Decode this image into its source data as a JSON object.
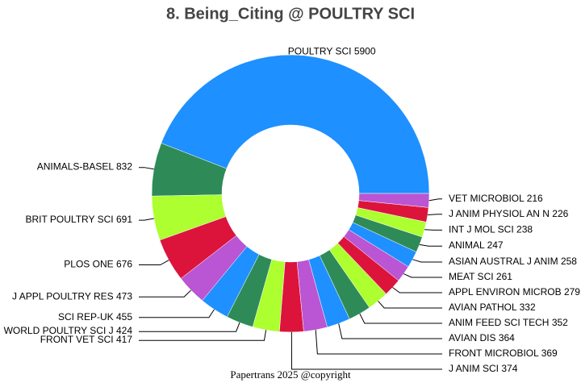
{
  "chart_data": {
    "type": "donut",
    "title": "8. Being_Citing @ POULTRY SCI",
    "footer": "Papertrans 2025 @copyright",
    "categories": [
      "POULTRY SCI",
      "ANIMALS-BASEL",
      "BRIT POULTRY SCI",
      "PLOS ONE",
      "J APPL POULTRY RES",
      "SCI REP-UK",
      "WORLD POULTRY SCI J",
      "FRONT VET SCI",
      "J ANIM SCI",
      "FRONT MICROBIOL",
      "AVIAN DIS",
      "ANIM FEED SCI TECH",
      "AVIAN PATHOL",
      "APPL ENVIRON MICROB",
      "MEAT SCI",
      "ASIAN AUSTRAL J ANIM",
      "ANIMAL",
      "INT J MOL SCI",
      "J ANIM PHYSIOL AN N",
      "VET MICROBIOL"
    ],
    "values": [
      5900,
      832,
      691,
      676,
      473,
      455,
      424,
      417,
      374,
      369,
      364,
      352,
      332,
      279,
      261,
      258,
      247,
      238,
      226,
      216
    ],
    "colors": [
      "#1e90ff",
      "#2e8b57",
      "#adff2f",
      "#dc143c",
      "#ba55d3"
    ]
  }
}
